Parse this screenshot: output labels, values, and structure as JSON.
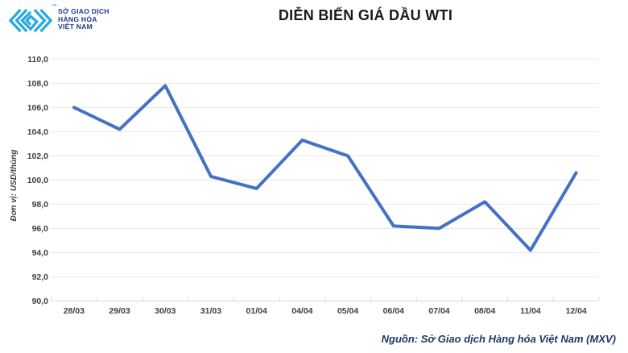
{
  "theme": {
    "brand_blue": "#29A9E1",
    "brand_navy": "#24388E",
    "title_color": "#1A1A1A",
    "tick_label_color": "#3F3F3F",
    "grid_color": "#E9E9E9",
    "axis_color": "#D8D8D8",
    "line_color": "#4472C4",
    "source_color": "#1F3864"
  },
  "header": {
    "logo": {
      "text_lines": [
        "SỞ GIAO DỊCH",
        "HÀNG HÓA",
        "VIỆT NAM"
      ],
      "trademark": "™"
    },
    "title": "DIỄN BIẾN GIÁ DẦU WTI"
  },
  "chart_data": {
    "type": "line",
    "title": "DIỄN BIẾN GIÁ DẦU WTI",
    "categories": [
      "28/03",
      "29/03",
      "30/03",
      "31/03",
      "01/04",
      "04/04",
      "05/04",
      "06/04",
      "07/04",
      "08/04",
      "11/04",
      "12/04"
    ],
    "series": [
      {
        "name": "WTI",
        "values": [
          106.0,
          104.2,
          107.8,
          100.3,
          99.3,
          103.3,
          102.0,
          96.2,
          96.0,
          98.2,
          94.2,
          100.6
        ]
      }
    ],
    "xlabel": "",
    "ylabel": "Đơn vị: USD/thùng",
    "ylim": [
      90,
      110
    ],
    "ytick_step": 2,
    "ytick_labels": [
      "110,0",
      "108,0",
      "106,0",
      "104,0",
      "102,0",
      "100,0",
      "98,0",
      "96,0",
      "94,0",
      "92,0",
      "90,0"
    ],
    "grid": true,
    "legend": false
  },
  "footer": {
    "source": "Nguồn: Sở Giao dịch Hàng hóa Việt Nam (MXV)"
  }
}
